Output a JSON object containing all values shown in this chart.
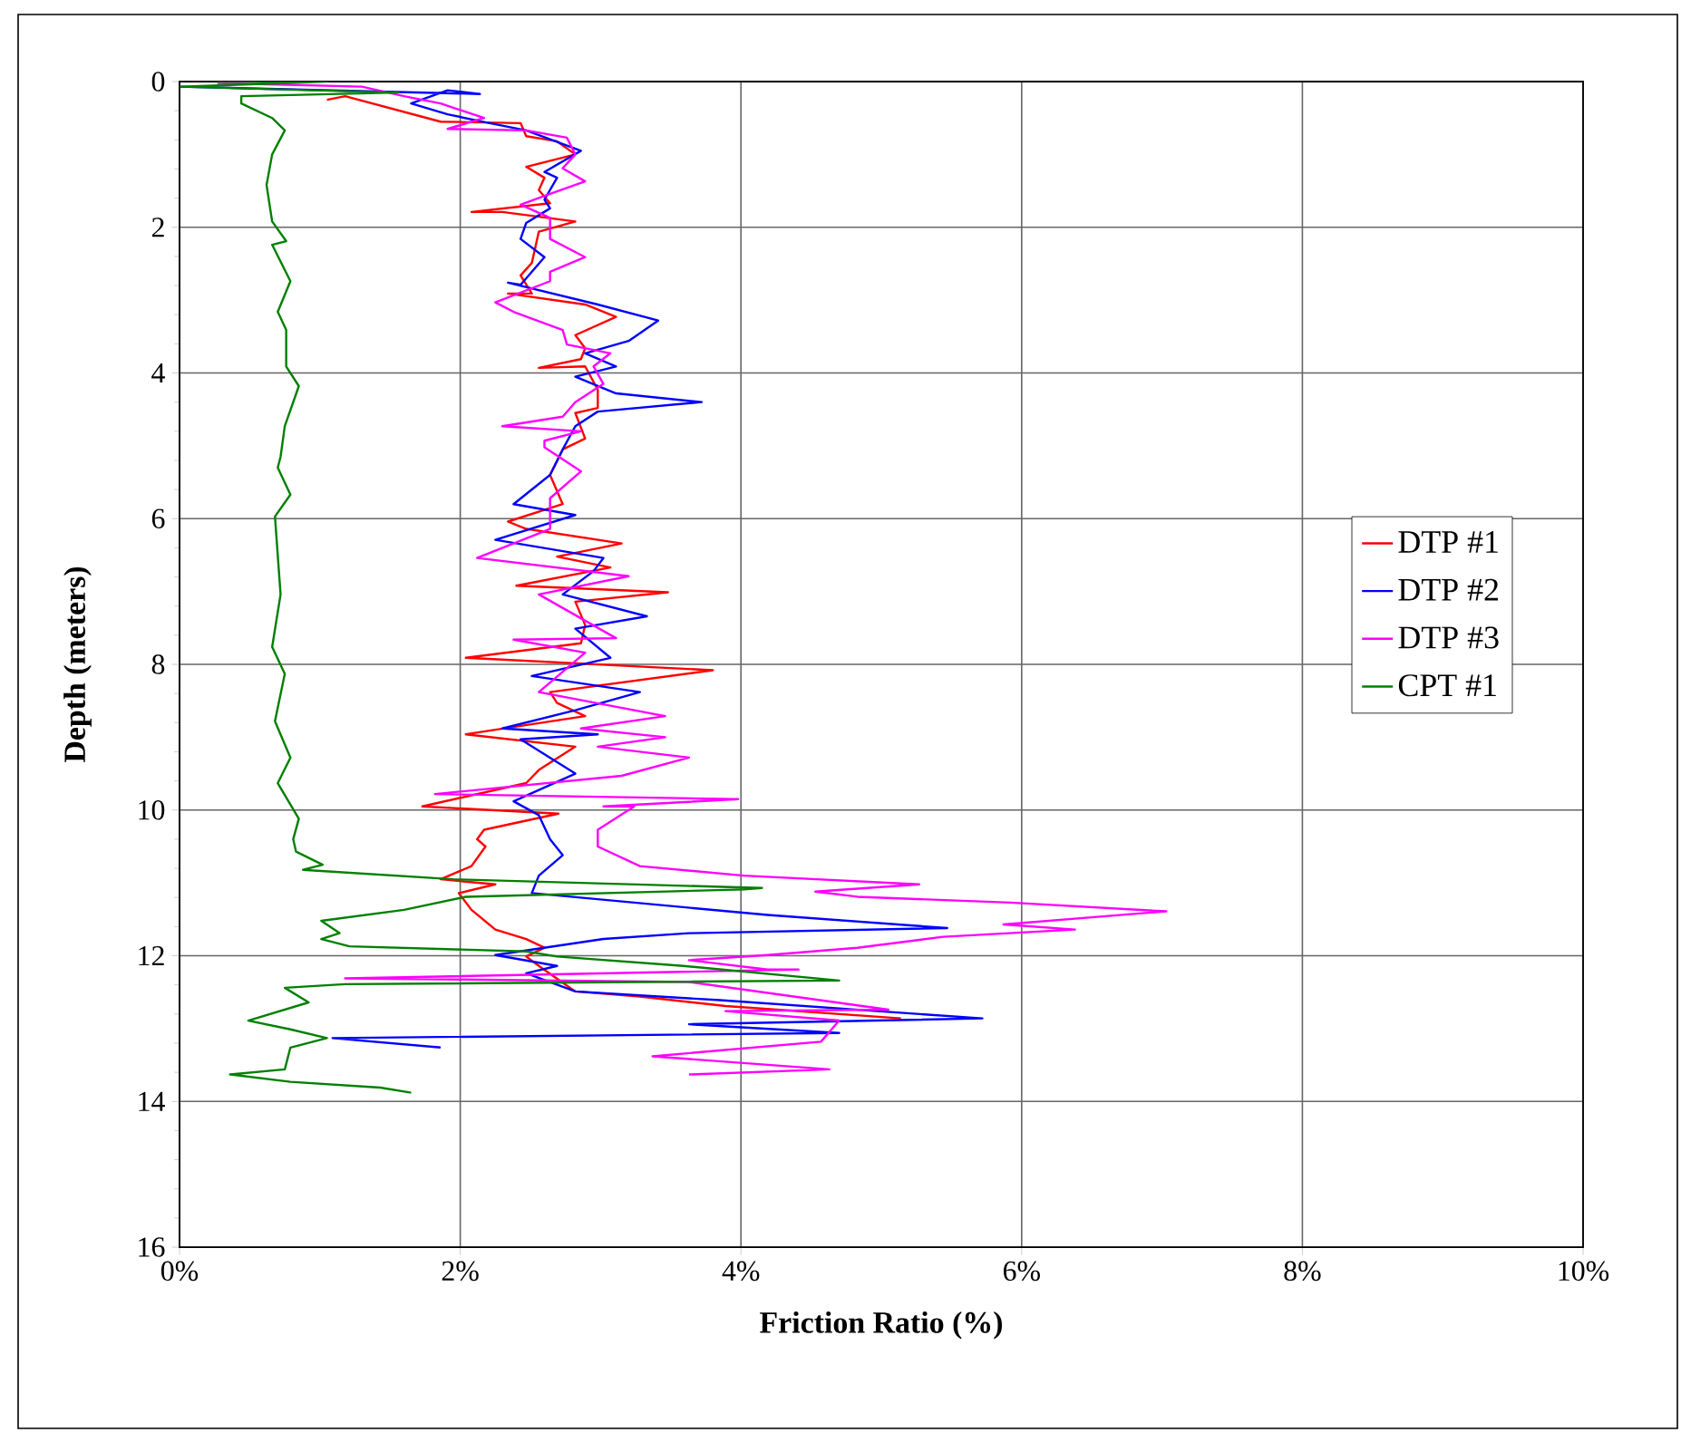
{
  "chart_data": {
    "type": "line",
    "xlabel": "Friction Ratio (%)",
    "ylabel": "Depth (meters)",
    "xlim": [
      0,
      10
    ],
    "ylim": [
      16,
      0
    ],
    "xticks": [
      {
        "value": 0,
        "label": "0%"
      },
      {
        "value": 2,
        "label": "2%"
      },
      {
        "value": 4,
        "label": "4%"
      },
      {
        "value": 6,
        "label": "6%"
      },
      {
        "value": 8,
        "label": "8%"
      },
      {
        "value": 10,
        "label": "10%"
      }
    ],
    "yticks": [
      0,
      2,
      4,
      6,
      8,
      10,
      12,
      14,
      16
    ],
    "grid": true,
    "legend": "right",
    "marker": "none",
    "line_style": "solid",
    "series": [
      {
        "name": "DTP #1",
        "color": "#ff0000",
        "x": [
          1.05,
          1.18,
          1.86,
          2.43,
          2.47,
          2.69,
          2.82,
          2.47,
          2.6,
          2.56,
          2.64,
          2.08,
          2.3,
          2.82,
          2.56,
          2.51,
          2.43,
          2.51,
          2.34,
          2.89,
          3.11,
          2.82,
          2.89,
          2.86,
          2.56,
          2.89,
          2.98,
          2.98,
          2.82,
          2.89,
          2.73,
          2.64,
          2.73,
          2.34,
          2.47,
          3.15,
          2.69,
          3.07,
          2.4,
          3.48,
          2.82,
          2.89,
          2.86,
          2.04,
          3.8,
          2.64,
          2.69,
          2.89,
          2.04,
          2.82,
          2.56,
          2.47,
          1.73,
          2.7,
          2.17,
          2.12,
          2.18,
          2.08,
          1.86,
          2.25,
          1.99,
          2.08,
          2.25,
          2.47,
          2.6,
          2.47,
          2.56,
          2.82,
          3.28,
          3.89,
          5.14
        ],
        "values": [
          0.25,
          0.2,
          0.55,
          0.57,
          0.75,
          0.82,
          1.0,
          1.17,
          1.32,
          1.49,
          1.67,
          1.79,
          1.79,
          1.92,
          2.06,
          2.49,
          2.66,
          2.91,
          2.91,
          3.06,
          3.23,
          3.48,
          3.66,
          3.81,
          3.93,
          3.91,
          4.23,
          4.48,
          4.55,
          4.9,
          5.05,
          5.4,
          5.8,
          6.04,
          6.14,
          6.34,
          6.52,
          6.67,
          6.92,
          7.01,
          7.14,
          7.46,
          7.71,
          7.91,
          8.08,
          8.38,
          8.53,
          8.71,
          8.96,
          9.13,
          9.45,
          9.63,
          9.95,
          10.05,
          10.27,
          10.4,
          10.5,
          10.77,
          10.95,
          11.02,
          11.14,
          11.37,
          11.64,
          11.77,
          11.89,
          12.01,
          12.14,
          12.49,
          12.56,
          12.69,
          12.86
        ]
      },
      {
        "name": "DTP #2",
        "color": "#0000ff",
        "x": [
          0,
          2.14,
          1.91,
          1.65,
          1.91,
          2.21,
          2.47,
          2.86,
          2.6,
          2.69,
          2.6,
          2.64,
          2.47,
          2.43,
          2.6,
          2.43,
          2.34,
          2.98,
          3.41,
          3.2,
          2.89,
          3.11,
          2.82,
          3.11,
          3.72,
          2.98,
          2.82,
          2.73,
          2.64,
          2.38,
          2.82,
          2.25,
          3.02,
          2.95,
          2.73,
          3.33,
          2.82,
          3.07,
          2.51,
          3.28,
          2.82,
          2.3,
          2.98,
          2.43,
          2.82,
          2.38,
          2.56,
          2.64,
          2.73,
          2.56,
          2.51,
          4.19,
          5.47,
          3.63,
          3.02,
          2.25,
          2.69,
          2.47,
          2.82,
          3.85,
          5.72,
          3.63,
          4.7,
          1.09,
          1.86
        ],
        "values": [
          0.07,
          0.17,
          0.12,
          0.3,
          0.45,
          0.57,
          0.67,
          0.95,
          1.24,
          1.32,
          1.62,
          1.74,
          1.94,
          2.16,
          2.41,
          2.79,
          2.76,
          3.06,
          3.28,
          3.56,
          3.73,
          3.91,
          4.05,
          4.28,
          4.4,
          4.53,
          4.73,
          5.05,
          5.4,
          5.8,
          5.95,
          6.29,
          6.54,
          6.72,
          7.04,
          7.34,
          7.51,
          7.91,
          8.16,
          8.38,
          8.63,
          8.88,
          8.96,
          9.03,
          9.5,
          9.88,
          10.07,
          10.4,
          10.62,
          10.9,
          11.14,
          11.44,
          11.62,
          11.69,
          11.77,
          11.99,
          12.14,
          12.24,
          12.49,
          12.61,
          12.86,
          12.94,
          13.06,
          13.13,
          13.26
        ]
      },
      {
        "name": "DTP #3",
        "color": "#ff00ff",
        "x": [
          0.27,
          1.3,
          1.6,
          1.86,
          2.17,
          1.91,
          2.47,
          2.76,
          2.82,
          2.73,
          2.89,
          2.6,
          2.43,
          2.64,
          2.64,
          2.89,
          2.64,
          2.64,
          2.25,
          2.38,
          2.73,
          2.76,
          3.07,
          2.95,
          3.02,
          2.82,
          2.73,
          2.3,
          2.86,
          2.6,
          2.6,
          2.86,
          2.64,
          2.64,
          2.12,
          3.2,
          2.56,
          3.11,
          2.38,
          2.89,
          2.56,
          3.46,
          2.86,
          3.46,
          2.98,
          3.63,
          3.15,
          1.82,
          3.98,
          3.02,
          3.24,
          2.98,
          2.98,
          3.28,
          4.02,
          5.27,
          4.53,
          4.83,
          5.92,
          7.03,
          5.87,
          6.38,
          5.44,
          4.83,
          4.19,
          3.63,
          4.19,
          4.41,
          1.18,
          3.63,
          5.05,
          3.89,
          4.7,
          4.57,
          3.37,
          4.63,
          3.63
        ],
        "values": [
          0.02,
          0.07,
          0.2,
          0.3,
          0.5,
          0.65,
          0.67,
          0.77,
          1.0,
          1.19,
          1.37,
          1.57,
          1.69,
          1.87,
          2.16,
          2.41,
          2.61,
          2.74,
          3.03,
          3.16,
          3.41,
          3.61,
          3.73,
          3.91,
          4.15,
          4.4,
          4.6,
          4.73,
          4.8,
          4.93,
          5.02,
          5.35,
          5.72,
          6.14,
          6.54,
          6.79,
          7.04,
          7.64,
          7.66,
          7.84,
          8.38,
          8.71,
          8.88,
          9.0,
          9.13,
          9.28,
          9.53,
          9.78,
          9.85,
          9.95,
          9.95,
          10.27,
          10.5,
          10.77,
          10.9,
          11.02,
          11.12,
          11.19,
          11.27,
          11.39,
          11.57,
          11.64,
          11.74,
          11.89,
          11.99,
          12.06,
          12.19,
          12.19,
          12.31,
          12.36,
          12.74,
          12.76,
          12.89,
          13.18,
          13.38,
          13.56,
          13.63
        ]
      },
      {
        "name": "CPT #1",
        "color": "#008000",
        "x": [
          0.27,
          1.05,
          0.01,
          1.56,
          0.44,
          0.44,
          0.66,
          0.75,
          0.66,
          0.62,
          0.66,
          0.76,
          0.66,
          0.79,
          0.7,
          0.76,
          0.76,
          0.85,
          0.75,
          0.72,
          0.7,
          0.79,
          0.68,
          0.72,
          0.66,
          0.75,
          0.68,
          0.79,
          0.7,
          0.85,
          0.81,
          0.83,
          1.02,
          0.88,
          1.95,
          4.15,
          4.02,
          2.04,
          1.6,
          1.01,
          1.14,
          1.01,
          1.21,
          2.47,
          2.69,
          3.59,
          4.7,
          1.18,
          0.75,
          0.92,
          0.49,
          0.79,
          1.05,
          0.79,
          0.75,
          0.36,
          0.79,
          1.43,
          1.65
        ],
        "values": [
          0,
          0,
          0.07,
          0.15,
          0.2,
          0.3,
          0.5,
          0.67,
          1.0,
          1.42,
          1.92,
          2.19,
          2.24,
          2.74,
          3.16,
          3.41,
          3.91,
          4.18,
          4.73,
          5.15,
          5.3,
          5.67,
          5.97,
          7.04,
          7.76,
          8.13,
          8.78,
          9.28,
          9.63,
          10.12,
          10.4,
          10.57,
          10.75,
          10.82,
          10.95,
          11.07,
          11.09,
          11.19,
          11.37,
          11.52,
          11.69,
          11.77,
          11.87,
          11.94,
          12.01,
          12.14,
          12.34,
          12.39,
          12.44,
          12.64,
          12.89,
          13.01,
          13.13,
          13.26,
          13.56,
          13.63,
          13.73,
          13.81,
          13.88
        ]
      }
    ]
  }
}
